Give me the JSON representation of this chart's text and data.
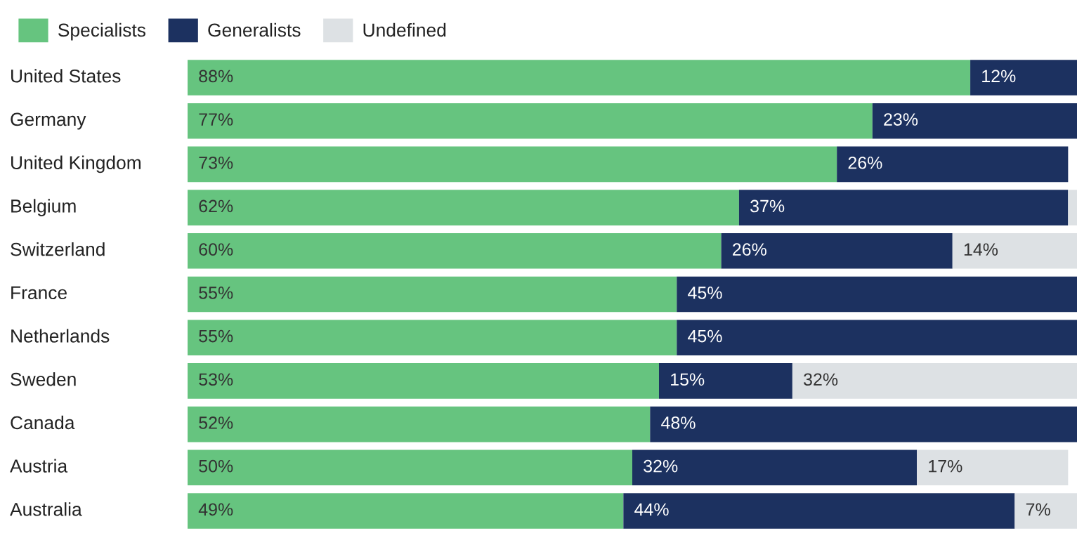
{
  "chart_data": {
    "type": "bar",
    "orientation": "horizontal",
    "stacked": true,
    "legend": "top left",
    "tick_labels": "y",
    "xlim": [
      0,
      100
    ],
    "categories": [
      "United States",
      "Germany",
      "United Kingdom",
      "Belgium",
      "Switzerland",
      "France",
      "Netherlands",
      "Sweden",
      "Canada",
      "Austria",
      "Australia"
    ],
    "series": [
      {
        "name": "Specialists",
        "color": "#66c47f",
        "values": [
          88,
          77,
          73,
          62,
          60,
          55,
          55,
          53,
          52,
          50,
          49
        ],
        "value_labels": [
          "88%",
          "77%",
          "73%",
          "62%",
          "60%",
          "55%",
          "55%",
          "53%",
          "52%",
          "50%",
          "49%"
        ]
      },
      {
        "name": "Generalists",
        "color": "#1c3160",
        "values": [
          12,
          23,
          26,
          37,
          26,
          45,
          45,
          15,
          48,
          32,
          44
        ],
        "value_labels": [
          "12%",
          "23%",
          "26%",
          "37%",
          "26%",
          "45%",
          "45%",
          "15%",
          "48%",
          "32%",
          "44%"
        ]
      },
      {
        "name": "Undefined",
        "color": "#dde1e4",
        "values": [
          null,
          null,
          null,
          1,
          14,
          null,
          null,
          32,
          null,
          17,
          7
        ],
        "value_labels": [
          null,
          null,
          null,
          null,
          "14%",
          null,
          null,
          "32%",
          null,
          "17%",
          "7%"
        ]
      }
    ]
  }
}
